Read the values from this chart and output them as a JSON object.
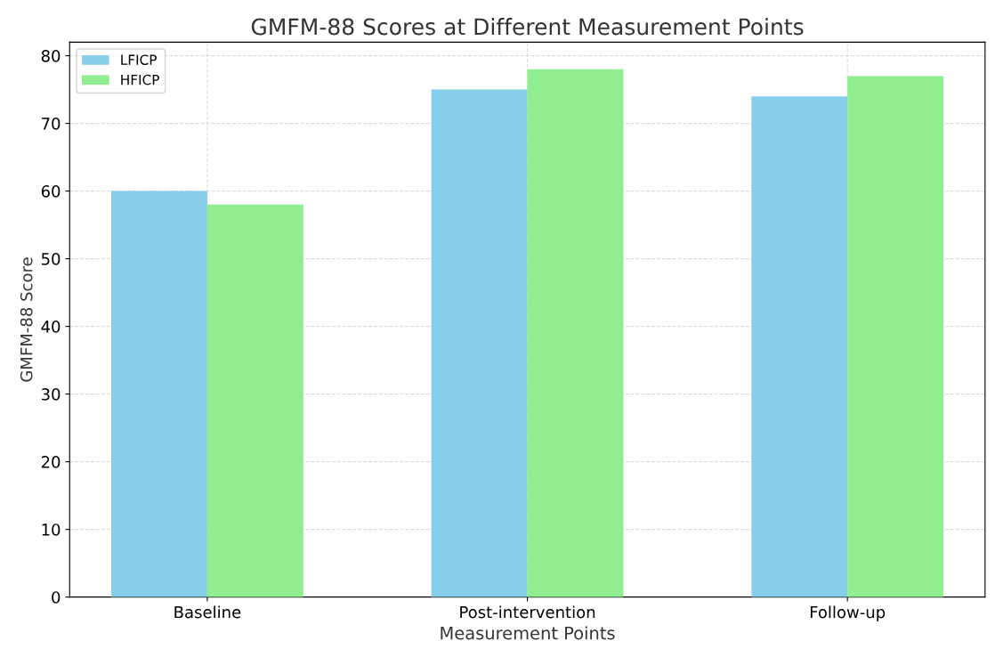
{
  "chart_data": {
    "type": "bar",
    "title": "GMFM-88 Scores at Different Measurement Points",
    "xlabel": "Measurement Points",
    "ylabel": "GMFM-88 Score",
    "categories": [
      "Baseline",
      "Post-intervention",
      "Follow-up"
    ],
    "series": [
      {
        "name": "LFICP",
        "color": "#87ceeb",
        "values": [
          60,
          75,
          74
        ]
      },
      {
        "name": "HFICP",
        "color": "#90ee90",
        "values": [
          58,
          78,
          77
        ]
      }
    ],
    "ylim": [
      0,
      82
    ],
    "yticks": [
      0,
      10,
      20,
      30,
      40,
      50,
      60,
      70,
      80
    ],
    "grid": true,
    "legend": "top left"
  }
}
